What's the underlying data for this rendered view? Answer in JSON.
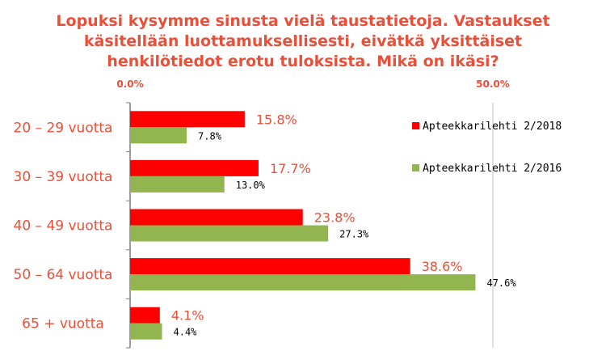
{
  "title_lines": [
    "Lopuksi kysymme sinusta vielä taustatietoja. Vastaukset",
    "käsitellään luottamuksellisesti, eivätkä yksittäiset",
    "henkilötiedot erotu tuloksista.  Mikä on ikäsi?"
  ],
  "chart_data": {
    "type": "bar",
    "orientation": "horizontal",
    "title": "Lopuksi kysymme sinusta vielä taustatietoja. Vastaukset käsitellään luottamuksellisesti, eivätkä yksittäiset henkilötiedot erotu tuloksista.  Mikä on ikäsi?",
    "categories": [
      "20 – 29 vuotta",
      "30 – 39 vuotta",
      "40 – 49 vuotta",
      "50 – 64 vuotta",
      "65 + vuotta"
    ],
    "series": [
      {
        "name": "Apteekkarilehti 2/2018",
        "color": "#ff0000",
        "values": [
          15.8,
          17.7,
          23.8,
          38.6,
          4.1
        ],
        "labels": [
          "15.8%",
          "17.7%",
          "23.8%",
          "38.6%",
          "4.1%"
        ]
      },
      {
        "name": "Apteekkarilehti 2/2016",
        "color": "#92b550",
        "values": [
          7.8,
          13.0,
          27.3,
          47.6,
          4.4
        ],
        "labels": [
          "7.8%",
          "13.0%",
          "27.3%",
          "47.6%",
          "4.4%"
        ]
      }
    ],
    "xlim": [
      0,
      50
    ],
    "ticks": [
      0,
      50
    ],
    "tick_labels": [
      "0.0%",
      "50.0%"
    ],
    "tick_position": "top",
    "grid": true,
    "legend_position": "right",
    "xlabel": "",
    "ylabel": ""
  }
}
